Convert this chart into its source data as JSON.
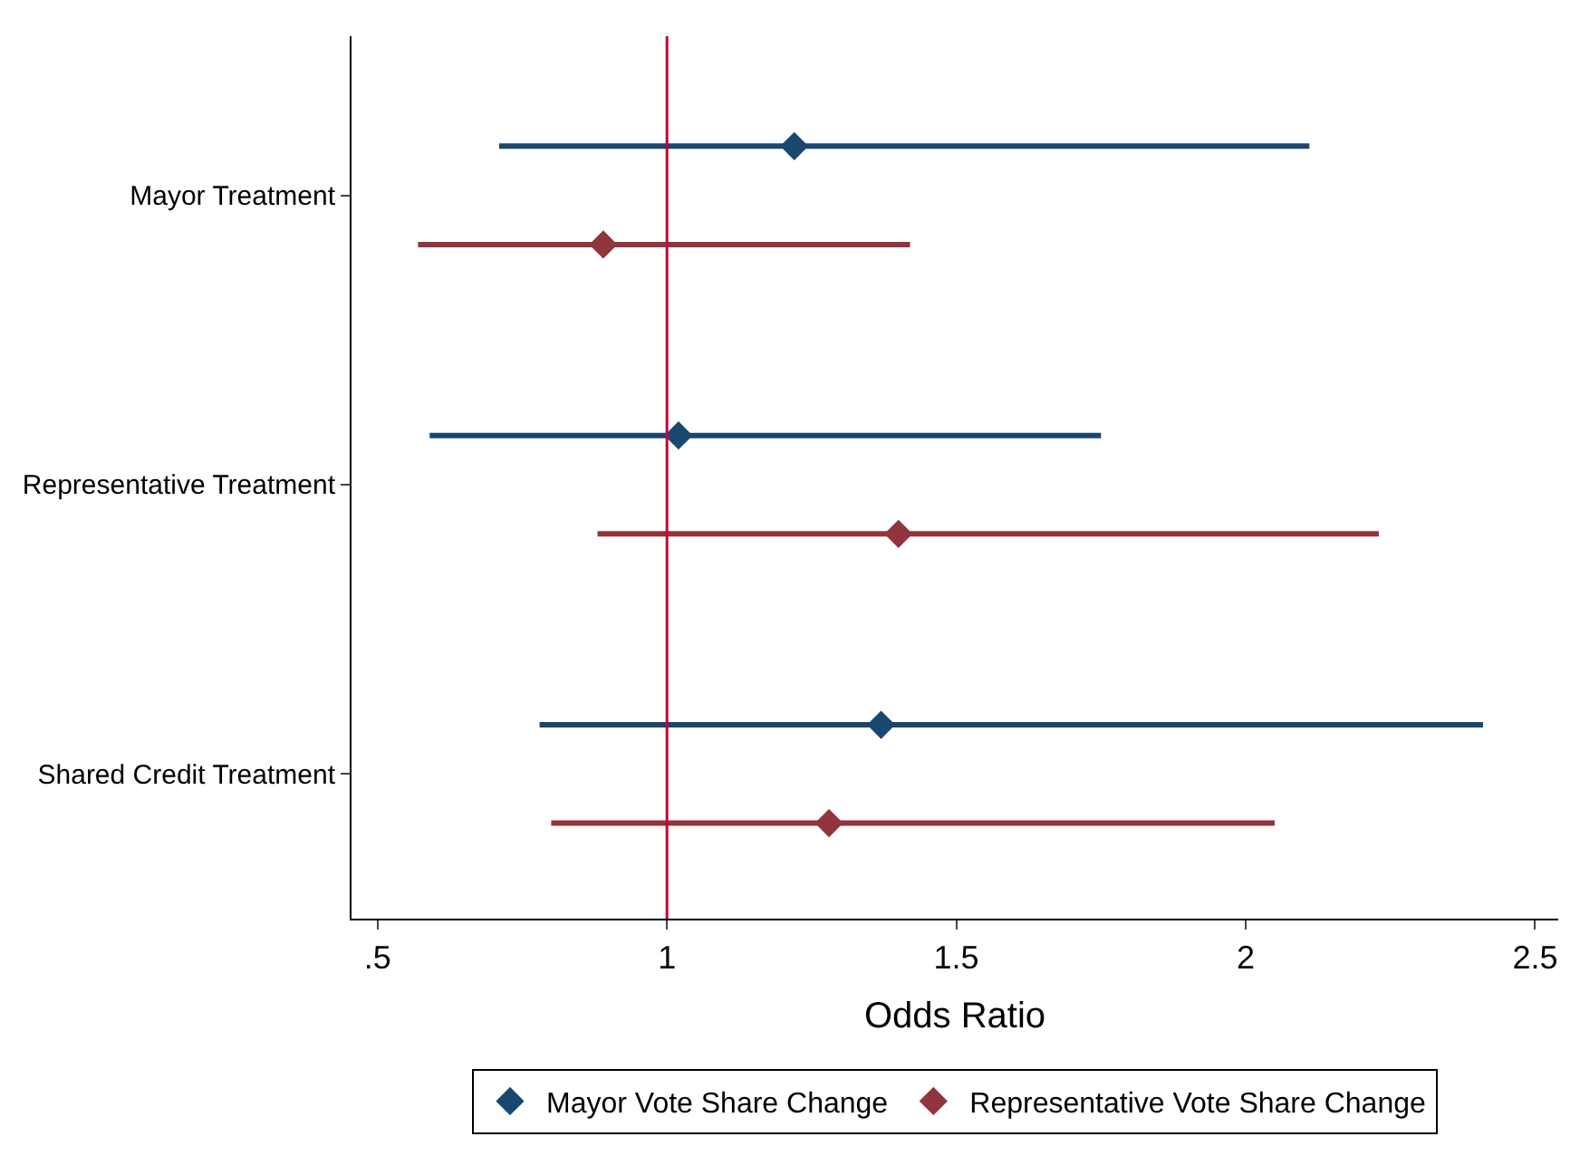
{
  "chart_data": {
    "type": "scatter",
    "orientation": "horizontal",
    "xlabel": "Odds Ratio",
    "categories": [
      "Mayor Treatment",
      "Representative Treatment",
      "Shared Credit Treatment"
    ],
    "series": [
      {
        "name": "Mayor Vote Share Change",
        "color": "#1a476f",
        "values": [
          1.22,
          1.02,
          1.37
        ],
        "errors": [
          [
            0.71,
            2.11
          ],
          [
            0.59,
            1.75
          ],
          [
            0.78,
            2.41
          ]
        ]
      },
      {
        "name": "Representative Vote Share Change",
        "color": "#90353b",
        "values": [
          0.89,
          1.4,
          1.28
        ],
        "errors": [
          [
            0.57,
            1.42
          ],
          [
            0.88,
            2.23
          ],
          [
            0.8,
            2.05
          ]
        ]
      }
    ],
    "xlim": [
      0.455,
      2.54
    ],
    "xticks": [
      {
        "value": 0.5,
        "label": ".5"
      },
      1,
      1.5,
      2,
      2.5
    ],
    "ref_lines": [
      {
        "axis": "x",
        "value": 1,
        "color": "#c10534"
      }
    ],
    "marker": "diamond",
    "legend": "bottom"
  }
}
